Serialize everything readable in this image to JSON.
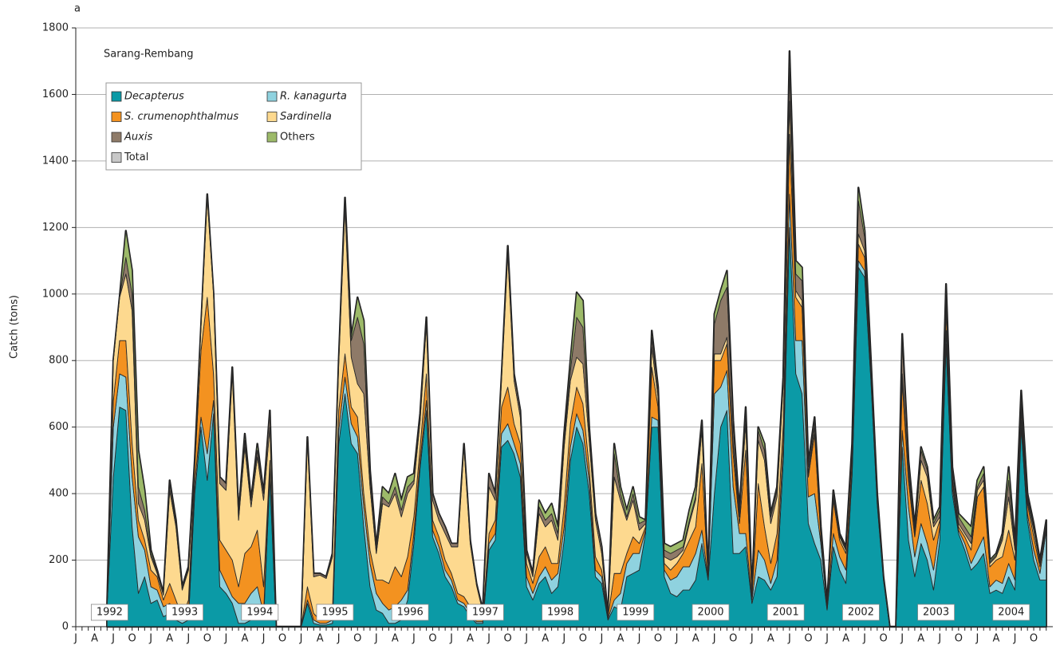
{
  "chart_data": {
    "type": "stacked_area",
    "panel_label": "a",
    "title": "Sarang-Rembang",
    "y_label": "Catch (tons)",
    "ylim": [
      0,
      1800
    ],
    "yticks": [
      0,
      200,
      400,
      600,
      800,
      1000,
      1200,
      1400,
      1600,
      1800
    ],
    "grid": true,
    "legend_position": "upper left",
    "year_labels": [
      "1992",
      "1993",
      "1994",
      "1995",
      "1996",
      "1997",
      "1998",
      "1999",
      "2000",
      "2001",
      "2002",
      "2003",
      "2004"
    ],
    "categories": [
      "J",
      null,
      null,
      "A",
      null,
      null,
      "J",
      null,
      null,
      "O",
      null,
      null,
      "J",
      null,
      null,
      "A",
      null,
      null,
      "J",
      null,
      null,
      "O",
      null,
      null,
      "J",
      null,
      null,
      "A",
      null,
      null,
      "J",
      null,
      null,
      "O",
      null,
      null,
      "J",
      null,
      null,
      "A",
      null,
      null,
      "J",
      null,
      null,
      "O",
      null,
      null,
      "J",
      null,
      null,
      "A",
      null,
      null,
      "J",
      null,
      null,
      "O",
      null,
      null,
      "J",
      null,
      null,
      "A",
      null,
      null,
      "J",
      null,
      null,
      "O",
      null,
      null,
      "J",
      null,
      null,
      "A",
      null,
      null,
      "J",
      null,
      null,
      "O",
      null,
      null,
      "J",
      null,
      null,
      "A",
      null,
      null,
      "J",
      null,
      null,
      "O",
      null,
      null,
      "J",
      null,
      null,
      "A",
      null,
      null,
      "J",
      null,
      null,
      "O",
      null,
      null,
      "J",
      null,
      null,
      "A",
      null,
      null,
      "J",
      null,
      null,
      "O",
      null,
      null,
      "J",
      null,
      null,
      "A",
      null,
      null,
      "J",
      null,
      null,
      "O",
      null,
      null,
      "J",
      null,
      null,
      "A",
      null,
      null,
      "J",
      null,
      null,
      "O",
      null,
      null,
      "J",
      null,
      null,
      "A",
      null,
      null,
      "J",
      null,
      null,
      "O",
      null,
      null
    ],
    "series": [
      {
        "name": "Decapterus",
        "color": "#0b9aa6",
        "italic": true,
        "stacked": true,
        "values": [
          null,
          null,
          null,
          null,
          null,
          60,
          450,
          660,
          650,
          300,
          100,
          150,
          70,
          80,
          30,
          40,
          20,
          10,
          20,
          400,
          600,
          440,
          640,
          120,
          100,
          70,
          10,
          10,
          20,
          30,
          20,
          450,
          0,
          0,
          0,
          0,
          0,
          70,
          10,
          5,
          5,
          10,
          550,
          700,
          550,
          520,
          300,
          120,
          50,
          40,
          10,
          10,
          20,
          80,
          250,
          480,
          650,
          270,
          220,
          150,
          120,
          70,
          60,
          30,
          10,
          10,
          230,
          260,
          540,
          560,
          520,
          450,
          120,
          80,
          130,
          150,
          100,
          120,
          260,
          500,
          600,
          550,
          400,
          150,
          130,
          20,
          60,
          50,
          150,
          160,
          170,
          280,
          600,
          600,
          150,
          100,
          90,
          110,
          110,
          140,
          250,
          140,
          400,
          600,
          650,
          220,
          220,
          240,
          70,
          150,
          140,
          110,
          150,
          500,
          1200,
          760,
          700,
          310,
          250,
          200,
          50,
          240,
          170,
          130,
          460,
          1080,
          1050,
          740,
          370,
          140,
          0,
          0,
          540,
          260,
          150,
          250,
          200,
          110,
          260,
          850,
          400,
          280,
          230,
          170,
          190,
          220,
          100,
          110,
          100,
          150,
          110,
          600,
          320,
          200,
          140,
          140
        ]
      },
      {
        "name": "R. kanagurta",
        "color": "#8fd2df",
        "italic": true,
        "stacked": true,
        "values": [
          null,
          null,
          null,
          null,
          null,
          0,
          150,
          100,
          100,
          150,
          170,
          80,
          50,
          30,
          30,
          30,
          20,
          10,
          20,
          30,
          30,
          80,
          40,
          50,
          30,
          20,
          60,
          60,
          80,
          90,
          20,
          30,
          0,
          0,
          0,
          0,
          0,
          10,
          10,
          5,
          5,
          10,
          40,
          50,
          60,
          50,
          60,
          70,
          50,
          30,
          40,
          50,
          60,
          30,
          30,
          20,
          30,
          20,
          20,
          20,
          20,
          10,
          10,
          10,
          5,
          5,
          20,
          20,
          40,
          50,
          30,
          40,
          30,
          20,
          20,
          30,
          40,
          40,
          40,
          40,
          40,
          40,
          40,
          20,
          20,
          5,
          20,
          50,
          40,
          60,
          50,
          10,
          30,
          20,
          20,
          40,
          60,
          70,
          70,
          80,
          40,
          5,
          300,
          120,
          120,
          200,
          60,
          40,
          10,
          80,
          60,
          20,
          50,
          50,
          100,
          100,
          160,
          80,
          150,
          50,
          10,
          40,
          40,
          40,
          20,
          20,
          20,
          10,
          10,
          5,
          0,
          0,
          50,
          100,
          60,
          60,
          50,
          60,
          40,
          40,
          20,
          10,
          20,
          20,
          40,
          50,
          20,
          30,
          30,
          40,
          30,
          20,
          20,
          30,
          20,
          150
        ]
      },
      {
        "name": "S. crumenophthalmus",
        "color": "#f39220",
        "italic": true,
        "stacked": true,
        "values": [
          null,
          null,
          null,
          null,
          null,
          0,
          80,
          100,
          110,
          100,
          50,
          30,
          50,
          40,
          20,
          60,
          40,
          10,
          40,
          50,
          200,
          470,
          80,
          90,
          100,
          110,
          50,
          150,
          140,
          170,
          80,
          20,
          0,
          0,
          0,
          0,
          0,
          40,
          20,
          10,
          10,
          30,
          60,
          70,
          50,
          60,
          40,
          40,
          40,
          70,
          80,
          120,
          70,
          100,
          50,
          40,
          80,
          30,
          30,
          30,
          20,
          20,
          20,
          20,
          10,
          10,
          30,
          40,
          80,
          110,
          60,
          60,
          40,
          30,
          60,
          60,
          50,
          30,
          60,
          70,
          80,
          80,
          40,
          40,
          20,
          5,
          80,
          60,
          30,
          50,
          30,
          10,
          150,
          40,
          20,
          30,
          40,
          40,
          80,
          80,
          200,
          5,
          100,
          80,
          80,
          100,
          30,
          250,
          10,
          200,
          100,
          60,
          80,
          60,
          180,
          130,
          100,
          60,
          180,
          20,
          10,
          100,
          50,
          50,
          40,
          50,
          40,
          20,
          10,
          5,
          0,
          0,
          150,
          80,
          60,
          130,
          120,
          90,
          20,
          60,
          20,
          10,
          20,
          40,
          160,
          150,
          60,
          60,
          80,
          100,
          60,
          30,
          30,
          40,
          20,
          10
        ]
      },
      {
        "name": "Sardinella",
        "color": "#fdd98f",
        "italic": true,
        "stacked": true,
        "values": [
          null,
          null,
          null,
          null,
          null,
          0,
          120,
          130,
          200,
          400,
          50,
          60,
          40,
          10,
          15,
          280,
          220,
          80,
          90,
          20,
          70,
          300,
          240,
          170,
          180,
          560,
          200,
          320,
          120,
          220,
          260,
          100,
          0,
          0,
          0,
          0,
          0,
          440,
          110,
          135,
          125,
          160,
          140,
          440,
          150,
          100,
          300,
          190,
          80,
          230,
          230,
          220,
          180,
          190,
          100,
          80,
          150,
          60,
          50,
          80,
          80,
          140,
          450,
          190,
          100,
          20,
          140,
          60,
          80,
          400,
          130,
          80,
          30,
          20,
          130,
          60,
          130,
          70,
          180,
          130,
          90,
          120,
          80,
          110,
          50,
          0,
          290,
          220,
          100,
          110,
          40,
          10,
          60,
          30,
          20,
          30,
          20,
          10,
          50,
          80,
          100,
          0,
          20,
          20,
          20,
          30,
          20,
          80,
          10,
          130,
          200,
          120,
          110,
          120,
          100,
          20,
          20,
          10,
          20,
          10,
          0,
          10,
          10,
          10,
          10,
          30,
          20,
          10,
          5,
          0,
          0,
          0,
          20,
          20,
          10,
          60,
          80,
          40,
          10,
          20,
          10,
          10,
          10,
          20,
          20,
          20,
          10,
          10,
          50,
          100,
          30,
          20,
          10,
          20,
          10,
          10
        ]
      },
      {
        "name": "Auxis",
        "color": "#8e7a68",
        "italic": true,
        "stacked": true,
        "values": [
          null,
          null,
          null,
          null,
          null,
          0,
          0,
          0,
          50,
          50,
          50,
          30,
          10,
          5,
          5,
          20,
          10,
          5,
          5,
          0,
          0,
          10,
          0,
          20,
          20,
          20,
          20,
          20,
          20,
          20,
          20,
          50,
          0,
          0,
          0,
          0,
          0,
          10,
          10,
          5,
          5,
          10,
          10,
          20,
          50,
          200,
          150,
          30,
          10,
          20,
          10,
          20,
          20,
          20,
          10,
          10,
          20,
          20,
          20,
          20,
          10,
          10,
          10,
          10,
          5,
          5,
          40,
          20,
          10,
          20,
          20,
          20,
          10,
          10,
          20,
          20,
          20,
          20,
          20,
          30,
          120,
          110,
          20,
          20,
          20,
          0,
          70,
          20,
          10,
          20,
          20,
          10,
          30,
          20,
          20,
          20,
          20,
          10,
          10,
          10,
          20,
          0,
          90,
          160,
          150,
          50,
          10,
          30,
          0,
          30,
          30,
          20,
          20,
          10,
          100,
          50,
          60,
          20,
          20,
          10,
          0,
          10,
          5,
          5,
          10,
          100,
          40,
          10,
          5,
          0,
          0,
          0,
          100,
          30,
          10,
          30,
          20,
          10,
          20,
          40,
          20,
          20,
          20,
          20,
          10,
          20,
          5,
          5,
          10,
          50,
          10,
          30,
          10,
          10,
          5,
          5
        ]
      },
      {
        "name": "Others",
        "color": "#9dba69",
        "italic": false,
        "stacked": true,
        "values": [
          null,
          null,
          null,
          null,
          null,
          0,
          0,
          0,
          80,
          70,
          110,
          60,
          10,
          5,
          0,
          10,
          10,
          5,
          5,
          0,
          0,
          0,
          0,
          0,
          0,
          0,
          0,
          20,
          0,
          20,
          0,
          0,
          0,
          0,
          0,
          0,
          0,
          0,
          0,
          0,
          0,
          0,
          0,
          10,
          10,
          60,
          70,
          20,
          10,
          30,
          30,
          40,
          30,
          30,
          20,
          10,
          0,
          0,
          0,
          0,
          0,
          0,
          0,
          0,
          0,
          0,
          0,
          0,
          0,
          5,
          0,
          0,
          0,
          0,
          20,
          20,
          30,
          20,
          20,
          30,
          75,
          80,
          20,
          0,
          0,
          0,
          30,
          20,
          20,
          20,
          20,
          0,
          20,
          10,
          20,
          20,
          20,
          20,
          30,
          30,
          10,
          0,
          30,
          30,
          50,
          20,
          10,
          20,
          0,
          10,
          20,
          10,
          10,
          10,
          50,
          40,
          40,
          10,
          10,
          10,
          0,
          10,
          5,
          5,
          10,
          40,
          20,
          10,
          0,
          0,
          0,
          0,
          20,
          10,
          10,
          10,
          10,
          10,
          10,
          20,
          10,
          10,
          20,
          30,
          20,
          20,
          5,
          5,
          10,
          40,
          10,
          10,
          10,
          10,
          5,
          5
        ]
      },
      {
        "name": "Total",
        "color": "#c8c8c8",
        "italic": false,
        "stacked": false,
        "values": [
          null,
          null,
          null,
          null,
          null,
          60,
          800,
          990,
          1190,
          1070,
          530,
          410,
          230,
          170,
          100,
          440,
          320,
          120,
          180,
          500,
          900,
          1300,
          1000,
          450,
          430,
          780,
          340,
          580,
          380,
          550,
          400,
          650,
          0,
          0,
          0,
          0,
          0,
          570,
          160,
          160,
          150,
          220,
          800,
          1290,
          870,
          990,
          920,
          470,
          240,
          420,
          400,
          460,
          380,
          450,
          460,
          640,
          930,
          400,
          340,
          300,
          250,
          250,
          550,
          260,
          130,
          50,
          460,
          400,
          750,
          1145,
          760,
          650,
          230,
          160,
          380,
          340,
          370,
          300,
          580,
          800,
          1005,
          980,
          600,
          340,
          240,
          30,
          550,
          420,
          350,
          420,
          330,
          320,
          890,
          720,
          250,
          240,
          250,
          260,
          350,
          420,
          620,
          150,
          940,
          1010,
          1070,
          620,
          350,
          660,
          100,
          600,
          550,
          340,
          420,
          750,
          1730,
          1100,
          1080,
          490,
          630,
          300,
          70,
          410,
          280,
          240,
          550,
          1320,
          1190,
          800,
          400,
          150,
          0,
          0,
          880,
          500,
          300,
          540,
          480,
          320,
          360,
          1030,
          480,
          340,
          320,
          300,
          440,
          480,
          200,
          220,
          280,
          480,
          250,
          710,
          400,
          310,
          200,
          320
        ]
      }
    ]
  }
}
